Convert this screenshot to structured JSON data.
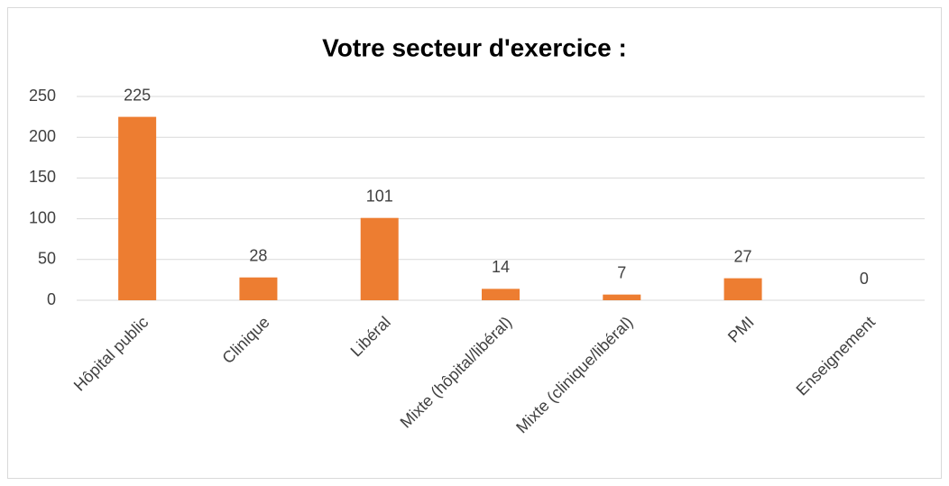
{
  "chart_data": {
    "type": "bar",
    "title": "Votre secteur d'exercice :",
    "categories": [
      "Hôpital public",
      "Clinique",
      "Libéral",
      "Mixte (hôpital/libéral)",
      "Mixte (clinique/libéral)",
      "PMI",
      "Enseignement"
    ],
    "values": [
      225,
      28,
      101,
      14,
      7,
      27,
      0
    ],
    "color": "#ed7d31",
    "ylim": [
      0,
      250
    ],
    "yticks": [
      0,
      50,
      100,
      150,
      200,
      250
    ],
    "grid": true
  }
}
